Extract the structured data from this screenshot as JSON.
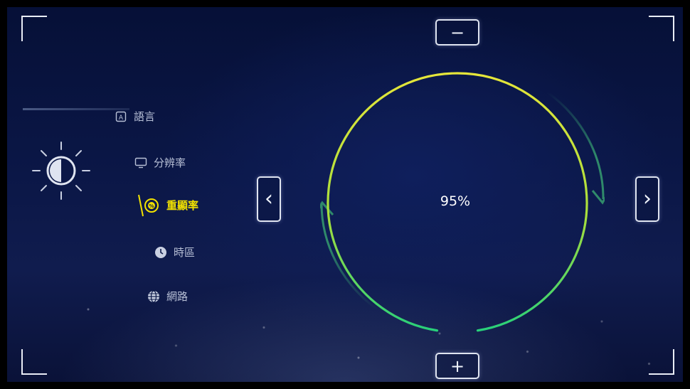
{
  "menu": {
    "items": [
      {
        "label": "語言",
        "icon": "language-icon"
      },
      {
        "label": "分辨率",
        "icon": "monitor-icon"
      },
      {
        "label": "重顯率",
        "icon": "refresh-rate-icon",
        "active": true
      },
      {
        "label": "時區",
        "icon": "clock-icon"
      },
      {
        "label": "網路",
        "icon": "globe-icon"
      }
    ]
  },
  "setting": {
    "icon": "brightness-icon",
    "value_text": "95%",
    "level": 0.95
  },
  "controls": {
    "minus_label": "−",
    "plus_label": "+",
    "prev_label": "‹",
    "next_label": "›"
  },
  "colors": {
    "active": "#f2e200",
    "ring_top": "#e6e63a",
    "ring_bottom": "#28d07a",
    "arrow": "#2f8a6a"
  }
}
